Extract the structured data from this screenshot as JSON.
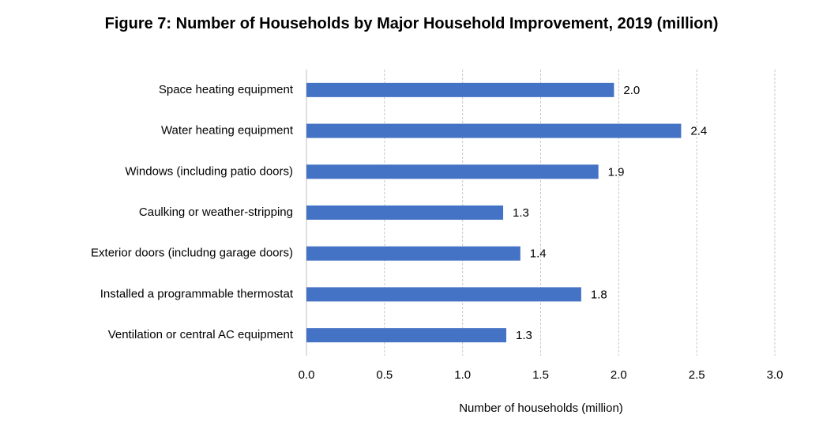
{
  "chart_data": {
    "type": "bar",
    "orientation": "horizontal",
    "title": "Figure 7: Number of Households by Major Household Improvement, 2019 (million)",
    "x_label": "Number of households (million)",
    "categories": [
      "Space heating equipment",
      "Water heating equipment",
      "Windows (including patio doors)",
      "Caulking or weather-stripping",
      "Exterior doors (includng garage doors)",
      "Installed a programmable thermostat",
      "Ventilation or central AC equipment"
    ],
    "values": [
      1.97,
      2.4,
      1.87,
      1.26,
      1.37,
      1.76,
      1.28
    ],
    "value_labels": [
      "2.0",
      "2.4",
      "1.9",
      "1.3",
      "1.4",
      "1.8",
      "1.3"
    ],
    "color": "#4472c4",
    "xlim": [
      0,
      3
    ],
    "xticks": [
      {
        "value": 0,
        "label": "0.0"
      },
      {
        "value": 0.5,
        "label": "0.5"
      },
      {
        "value": 1,
        "label": "1.0"
      },
      {
        "value": 1.5,
        "label": "1.5"
      },
      {
        "value": 2,
        "label": "2.0"
      },
      {
        "value": 2.5,
        "label": "2.5"
      },
      {
        "value": 3,
        "label": "3.0"
      }
    ],
    "grid": true
  }
}
